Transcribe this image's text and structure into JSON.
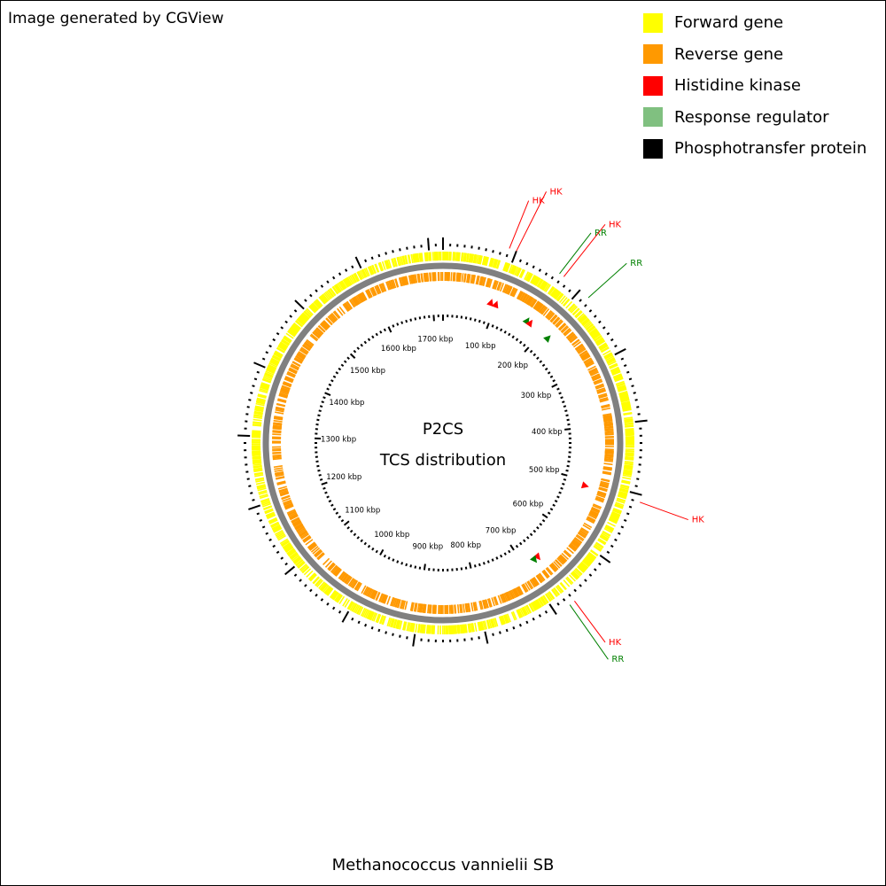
{
  "credit": "Image generated by CGView",
  "map_title": "Methanococcus vannielii SB",
  "center_title": "P2CS",
  "center_subtitle": "TCS distribution",
  "colors": {
    "forward": "#ffff00",
    "reverse": "#ff9900",
    "histidine_kinase": "#ff0000",
    "response_regulator": "#008000",
    "legend_response_regulator": "#80c080",
    "phosphotransfer": "#000000",
    "backbone": "#808080"
  },
  "legend": [
    {
      "label": "Forward gene",
      "color": "#ffff00"
    },
    {
      "label": "Reverse gene",
      "color": "#ff9900"
    },
    {
      "label": "Histidine kinase",
      "color": "#ff0000"
    },
    {
      "label": "Response regulator",
      "color": "#80c080"
    },
    {
      "label": "Phosphotransfer protein",
      "color": "#000000"
    }
  ],
  "genome_length_kbp": 1720,
  "ruler_labels": [
    "100 kbp",
    "200 kbp",
    "300 kbp",
    "400 kbp",
    "500 kbp",
    "600 kbp",
    "700 kbp",
    "800 kbp",
    "900 kbp",
    "1000 kbp",
    "1100 kbp",
    "1200 kbp",
    "1300 kbp",
    "1400 kbp",
    "1500 kbp",
    "1600 kbp",
    "1700 kbp"
  ],
  "ruler_label_positions_kbp": [
    100,
    200,
    300,
    400,
    500,
    600,
    700,
    800,
    900,
    1000,
    1100,
    1200,
    1300,
    1400,
    1500,
    1600,
    1700
  ],
  "features": [
    {
      "type": "HK",
      "label": "HK",
      "position_kbp": 90
    },
    {
      "type": "HK",
      "label": "HK",
      "position_kbp": 100
    },
    {
      "type": "RR",
      "label": "RR",
      "position_kbp": 165
    },
    {
      "type": "HK",
      "label": "HK",
      "position_kbp": 172
    },
    {
      "type": "RR",
      "label": "RR",
      "position_kbp": 215
    },
    {
      "type": "HK",
      "label": "HK",
      "position_kbp": 510
    },
    {
      "type": "HK",
      "label": "HK",
      "position_kbp": 670
    },
    {
      "type": "RR",
      "label": "RR",
      "position_kbp": 678
    }
  ]
}
